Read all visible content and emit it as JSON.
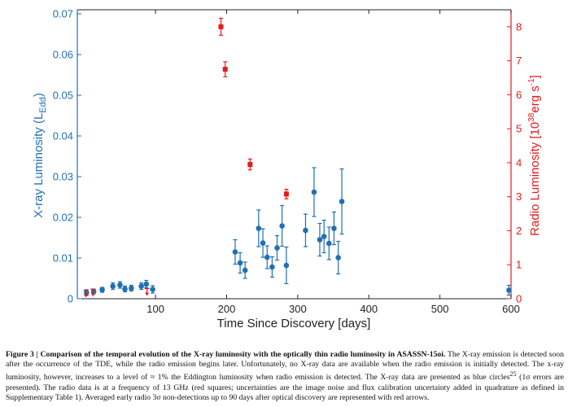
{
  "chart_data": {
    "type": "scatter",
    "xlabel": "Time Since Discovery [days]",
    "ylabel_left": "X-ray Luminosity (L",
    "ylabel_left_sub": "Edd",
    "ylabel_left_end": ")",
    "ylabel_right": "Radio Luminosity [10",
    "ylabel_right_sup1": "38",
    "ylabel_right_mid": "erg s",
    "ylabel_right_sup2": "-1",
    "ylabel_right_end": "]",
    "xlim": [
      -10,
      600
    ],
    "ylim_left": [
      0,
      0.071
    ],
    "ylim_right": [
      0,
      8.5
    ],
    "x_ticks": [
      100,
      200,
      300,
      400,
      500,
      600
    ],
    "y_ticks_left": [
      0,
      0.01,
      0.02,
      0.03,
      0.04,
      0.05,
      0.06,
      0.07
    ],
    "y_ticks_right": [
      0,
      1,
      2,
      3,
      4,
      5,
      6,
      7,
      8
    ],
    "colors": {
      "xray": "#1f6fb5",
      "radio": "#e31a1c",
      "axis": "#222222"
    },
    "series": [
      {
        "kind": "xray",
        "marker": "circle",
        "points": [
          {
            "x": 3,
            "y": 0.0015,
            "err": 0.0007
          },
          {
            "x": 13,
            "y": 0.0018,
            "err": 0.0006
          },
          {
            "x": 25,
            "y": 0.0022,
            "err": 0.0006
          },
          {
            "x": 40,
            "y": 0.0031,
            "err": 0.0008
          },
          {
            "x": 50,
            "y": 0.0034,
            "err": 0.0008
          },
          {
            "x": 57,
            "y": 0.0024,
            "err": 0.0007
          },
          {
            "x": 66,
            "y": 0.0026,
            "err": 0.0007
          },
          {
            "x": 80,
            "y": 0.0031,
            "err": 0.0008
          },
          {
            "x": 87,
            "y": 0.0036,
            "err": 0.0009
          },
          {
            "x": 96,
            "y": 0.0023,
            "err": 0.0009
          },
          {
            "x": 212,
            "y": 0.0115,
            "err": 0.003
          },
          {
            "x": 219,
            "y": 0.0088,
            "err": 0.0025
          },
          {
            "x": 226,
            "y": 0.007,
            "err": 0.002
          },
          {
            "x": 245,
            "y": 0.0173,
            "err": 0.0045
          },
          {
            "x": 251,
            "y": 0.0137,
            "err": 0.0035
          },
          {
            "x": 257,
            "y": 0.0102,
            "err": 0.0028
          },
          {
            "x": 264,
            "y": 0.0078,
            "err": 0.0025
          },
          {
            "x": 271,
            "y": 0.0125,
            "err": 0.003
          },
          {
            "x": 278,
            "y": 0.0179,
            "err": 0.005
          },
          {
            "x": 284,
            "y": 0.0082,
            "err": 0.0045
          },
          {
            "x": 311,
            "y": 0.0168,
            "err": 0.004
          },
          {
            "x": 323,
            "y": 0.0262,
            "err": 0.006
          },
          {
            "x": 331,
            "y": 0.0145,
            "err": 0.004
          },
          {
            "x": 337,
            "y": 0.0153,
            "err": 0.004
          },
          {
            "x": 344,
            "y": 0.0136,
            "err": 0.004
          },
          {
            "x": 351,
            "y": 0.0173,
            "err": 0.004
          },
          {
            "x": 357,
            "y": 0.0101,
            "err": 0.004
          },
          {
            "x": 362,
            "y": 0.0239,
            "err": 0.008
          },
          {
            "x": 597,
            "y": 0.0021,
            "err": 0.0012
          }
        ]
      },
      {
        "kind": "radio",
        "marker": "square",
        "points": [
          {
            "x": 192,
            "y": 8.0,
            "err": 0.25
          },
          {
            "x": 198,
            "y": 6.75,
            "err": 0.22
          },
          {
            "x": 233,
            "y": 3.95,
            "err": 0.16
          },
          {
            "x": 284,
            "y": 3.08,
            "err": 0.14
          }
        ]
      },
      {
        "kind": "radio-upper-limit",
        "marker": "down-arrow",
        "points": [
          {
            "x": 2,
            "y": 0.25
          },
          {
            "x": 12,
            "y": 0.28
          },
          {
            "x": 88,
            "y": 0.3
          }
        ]
      }
    ]
  },
  "caption": {
    "label": "Figure 3 | Comparison of the temporal evolution of the X-ray luminosity with the optically thin radio luminosity in ASASSN-15oi.",
    "body_1": " The X-ray emission is detected soon after the occurrence of the TDE, while the radio emission begins later. Unfortunately, no X-ray data are available when the radio emission is initially detected. The x-ray luminosity, however, increases to a level of ≈ 1% the Eddington luminosity when radio emission is detected. The X-ray data are presented as blue circles",
    "ref": "25",
    "body_2": " (1σ errors are presented). The radio data is at a frequency of 13 GHz (red squares; uncertainties are the image noise and flux calibration uncertainty added in quadrature as defined in Supplementary Table 1). Averaged early radio 3σ non-detections up to 90 days after optical discovery are represented with red arrows."
  }
}
